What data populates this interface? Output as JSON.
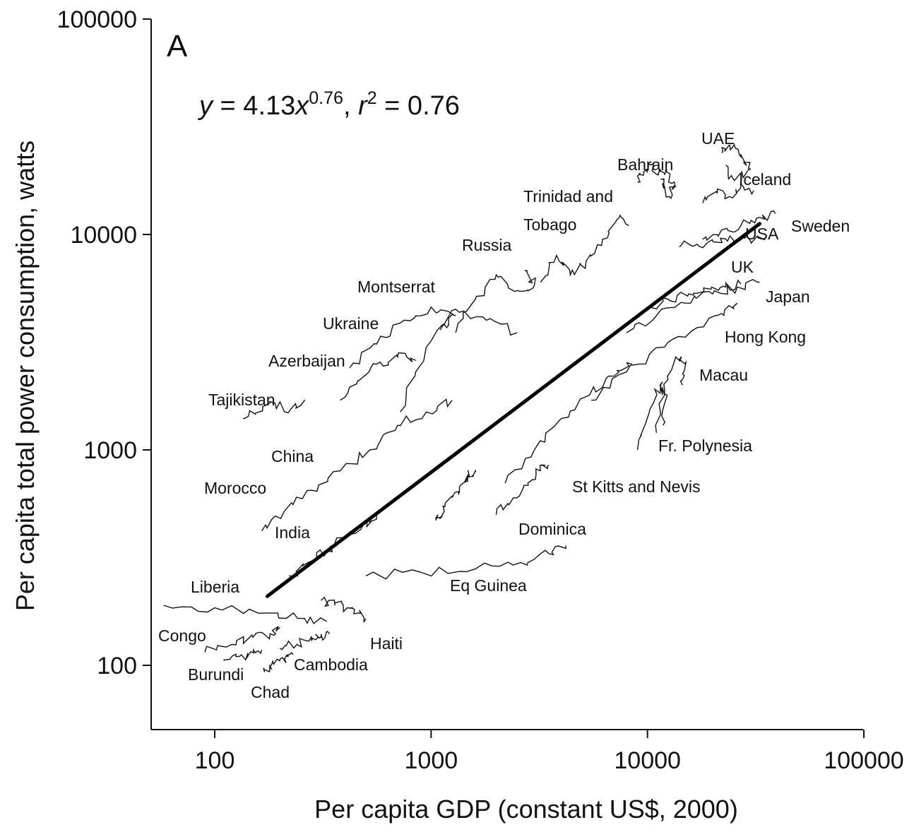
{
  "chart_data": {
    "type": "line",
    "panel_label": "A",
    "equation": {
      "y": "y",
      "eq": " = 4.13",
      "x": "x",
      "exp": "0.76",
      "sep": ", ",
      "r": "r",
      "r_exp": "2",
      "r_val": " = 0.76"
    },
    "xlabel": "Per capita GDP (constant US$, 2000)",
    "ylabel": "Per capita total power consumption, watts",
    "xscale": "log",
    "yscale": "log",
    "xlim": [
      50,
      100000
    ],
    "ylim": [
      50,
      100000
    ],
    "x_ticks": [
      100,
      1000,
      10000,
      100000
    ],
    "y_ticks": [
      100,
      1000,
      10000,
      100000
    ],
    "x_tick_labels": [
      "100",
      "1000",
      "10000",
      "100000"
    ],
    "y_tick_labels": [
      "100",
      "1000",
      "10000",
      "100000"
    ],
    "grid": false,
    "fit_line": {
      "coef": 4.13,
      "exponent": 0.76,
      "x_range": [
        175,
        33000
      ]
    },
    "series": [
      {
        "name": "UAE",
        "x": [
          22000,
          24000,
          27000,
          30000,
          25000,
          23000
        ],
        "y": [
          24000,
          26000,
          23000,
          20000,
          18000,
          21000
        ]
      },
      {
        "name": "Bahrain",
        "x": [
          9000,
          9600,
          10400,
          11200,
          12300,
          13400,
          12600,
          11500
        ],
        "y": [
          17500,
          19500,
          21000,
          19000,
          20000,
          17000,
          15000,
          18000
        ]
      },
      {
        "name": "Iceland",
        "x": [
          18000,
          21000,
          24000,
          27000,
          31000
        ],
        "y": [
          14000,
          15500,
          15000,
          16500,
          16000
        ]
      },
      {
        "name": "Sweden",
        "x": [
          18000,
          22000,
          27000,
          33000,
          39000
        ],
        "y": [
          9500,
          10500,
          11000,
          12000,
          12500
        ]
      },
      {
        "name": "USA",
        "x": [
          14000,
          17000,
          21000,
          25000,
          30000,
          35000
        ],
        "y": [
          8800,
          9000,
          9200,
          9400,
          9300,
          9500
        ]
      },
      {
        "name": "UK",
        "x": [
          10000,
          12500,
          15500,
          19000,
          23000,
          27000
        ],
        "y": [
          4600,
          5000,
          5300,
          5600,
          5700,
          5900
        ]
      },
      {
        "name": "Japan",
        "x": [
          8000,
          11000,
          15000,
          20000,
          26000,
          33000
        ],
        "y": [
          3500,
          4200,
          4800,
          5300,
          5700,
          6000
        ]
      },
      {
        "name": "Hong Kong",
        "x": [
          5500,
          8000,
          12000,
          17000,
          22000,
          26000
        ],
        "y": [
          1700,
          2300,
          3000,
          3700,
          4300,
          4800
        ]
      },
      {
        "name": "Macau",
        "x": [
          11000,
          12000,
          13500,
          15000,
          14500
        ],
        "y": [
          1200,
          1900,
          2700,
          2500,
          2000
        ]
      },
      {
        "name": "Fr. Polynesia",
        "x": [
          9000,
          10200,
          11500,
          12300,
          11800
        ],
        "y": [
          1000,
          1500,
          2000,
          1800,
          1300
        ]
      },
      {
        "name": "Trinidad and Tobago",
        "x": [
          3200,
          3800,
          4400,
          5200,
          6200,
          7400,
          8200
        ],
        "y": [
          6000,
          8000,
          6500,
          7500,
          9500,
          12000,
          11000
        ]
      },
      {
        "name": "Russia",
        "x": [
          1300,
          1600,
          2000,
          2500,
          3000,
          2700
        ],
        "y": [
          3500,
          5000,
          6500,
          5500,
          5800,
          6800
        ]
      },
      {
        "name": "Montserrat",
        "x": [
          720,
          950,
          1300,
          1800,
          2500
        ],
        "y": [
          1500,
          3000,
          4500,
          4000,
          3500
        ]
      },
      {
        "name": "Ukraine",
        "x": [
          420,
          560,
          750,
          1000,
          1300,
          1100
        ],
        "y": [
          2400,
          3100,
          4000,
          4600,
          4200,
          3600
        ]
      },
      {
        "name": "Azerbaijan",
        "x": [
          380,
          460,
          560,
          700,
          850
        ],
        "y": [
          1700,
          2100,
          2500,
          2700,
          2600
        ]
      },
      {
        "name": "Tajikistan",
        "x": [
          135,
          160,
          190,
          225,
          260
        ],
        "y": [
          1400,
          1500,
          1650,
          1550,
          1700
        ]
      },
      {
        "name": "China",
        "x": [
          165,
          210,
          280,
          380,
          520,
          700,
          950,
          1250
        ],
        "y": [
          420,
          520,
          650,
          800,
          1000,
          1300,
          1500,
          1700
        ]
      },
      {
        "name": "Morocco",
        "x": [
          1050,
          1150,
          1250,
          1400,
          1500,
          1600
        ],
        "y": [
          470,
          520,
          600,
          700,
          760,
          790
        ]
      },
      {
        "name": "India",
        "x": [
          220,
          270,
          330,
          400,
          480,
          560
        ],
        "y": [
          260,
          300,
          340,
          390,
          440,
          500
        ]
      },
      {
        "name": "St Kitts and Nevis",
        "x": [
          2200,
          3000,
          4000,
          5400,
          7000,
          8500
        ],
        "y": [
          700,
          1000,
          1400,
          1800,
          2200,
          2500
        ]
      },
      {
        "name": "Dominica",
        "x": [
          2000,
          2400,
          2800,
          3200,
          3500
        ],
        "y": [
          500,
          600,
          700,
          800,
          850
        ]
      },
      {
        "name": "Eq Guinea",
        "x": [
          500,
          900,
          1600,
          2600,
          3500,
          4200
        ],
        "y": [
          260,
          270,
          280,
          300,
          330,
          360
        ]
      },
      {
        "name": "Liberia",
        "x": [
          58,
          100,
          180,
          260,
          330
        ],
        "y": [
          190,
          185,
          175,
          165,
          160
        ]
      },
      {
        "name": "Congo",
        "x": [
          90,
          120,
          150,
          180,
          200
        ],
        "y": [
          115,
          125,
          135,
          140,
          150
        ]
      },
      {
        "name": "Haiti",
        "x": [
          310,
          360,
          410,
          460,
          500
        ],
        "y": [
          200,
          190,
          185,
          175,
          165
        ]
      },
      {
        "name": "Cambodia",
        "x": [
          200,
          240,
          280,
          310,
          340
        ],
        "y": [
          120,
          125,
          130,
          135,
          140
        ]
      },
      {
        "name": "Burundi",
        "x": [
          110,
          130,
          150,
          165
        ],
        "y": [
          105,
          110,
          115,
          118
        ]
      },
      {
        "name": "Chad",
        "x": [
          170,
          180,
          200,
          215,
          230
        ],
        "y": [
          93,
          98,
          105,
          110,
          112
        ]
      }
    ],
    "labels": [
      {
        "text": "UAE"
      },
      {
        "text": "Bahrain"
      },
      {
        "text": "Iceland"
      },
      {
        "text": "Trinidad and"
      },
      {
        "text": "Tobago"
      },
      {
        "text": "USA"
      },
      {
        "text": "Sweden"
      },
      {
        "text": "Russia"
      },
      {
        "text": "UK"
      },
      {
        "text": "Montserrat"
      },
      {
        "text": "Japan"
      },
      {
        "text": "Ukraine"
      },
      {
        "text": "Hong Kong"
      },
      {
        "text": "Azerbaijan"
      },
      {
        "text": "Macau"
      },
      {
        "text": "Tajikistan"
      },
      {
        "text": "China"
      },
      {
        "text": "Fr. Polynesia"
      },
      {
        "text": "Morocco"
      },
      {
        "text": "St Kitts and Nevis"
      },
      {
        "text": "India"
      },
      {
        "text": "Dominica"
      },
      {
        "text": "Liberia"
      },
      {
        "text": "Eq Guinea"
      },
      {
        "text": "Congo"
      },
      {
        "text": "Haiti"
      },
      {
        "text": "Cambodia"
      },
      {
        "text": "Burundi"
      },
      {
        "text": "Chad"
      }
    ]
  }
}
